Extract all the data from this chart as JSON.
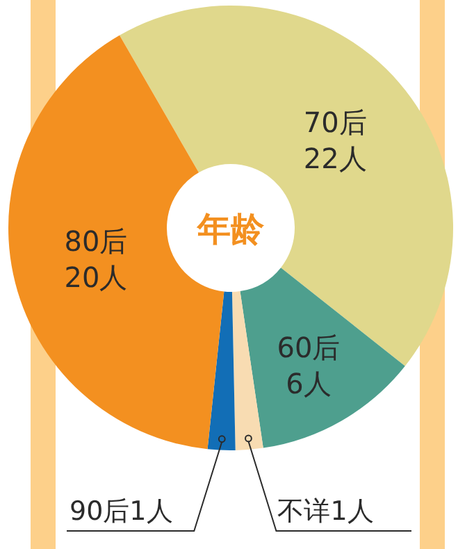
{
  "chart_data": {
    "type": "donut",
    "title": "年龄",
    "categories": [
      "70后",
      "60后",
      "不详",
      "90后",
      "80后"
    ],
    "values": [
      22,
      6,
      1,
      1,
      20
    ],
    "value_labels": [
      "22人",
      "6人",
      "1人",
      "1人",
      "20人"
    ],
    "colors": [
      "#e0d88c",
      "#4e9f8e",
      "#f8dcb2",
      "#126eb6",
      "#f39020"
    ]
  }
}
